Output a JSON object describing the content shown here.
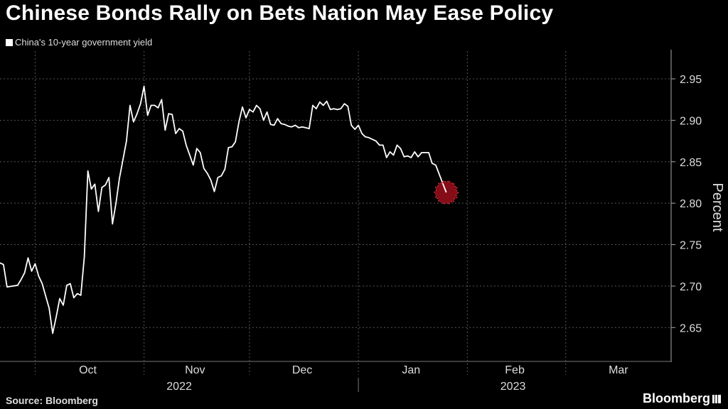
{
  "header": {
    "title": "Chinese Bonds Rally on Bets Nation May Ease Policy",
    "legend_label": "China's 10-year government yield"
  },
  "footer": {
    "source": "Source: Bloomberg",
    "brand": "Bloomberg"
  },
  "chart_data": {
    "type": "line",
    "title": "Chinese Bonds Rally on Bets Nation May Ease Policy",
    "ylabel": "Percent",
    "xlabel": "",
    "ylim": [
      2.61,
      2.98
    ],
    "yticks": [
      2.65,
      2.7,
      2.75,
      2.8,
      2.85,
      2.9,
      2.95
    ],
    "ytick_labels": [
      "2.65",
      "2.70",
      "2.75",
      "2.80",
      "2.85",
      "2.90",
      "2.95"
    ],
    "xlim": [
      "2022-09-21",
      "2023-03-31"
    ],
    "month_ticks": [
      {
        "label": "Oct",
        "center": "2022-10-16",
        "boundary": "2022-10-01"
      },
      {
        "label": "Nov",
        "center": "2022-11-15.5",
        "boundary": "2022-11-01"
      },
      {
        "label": "Dec",
        "center": "2022-12-16",
        "boundary": "2022-12-01"
      },
      {
        "label": "Jan",
        "center": "2023-01-16",
        "boundary": "2023-01-01"
      },
      {
        "label": "Feb",
        "center": "2023-02-14.5",
        "boundary": "2023-02-01"
      },
      {
        "label": "Mar",
        "center": "2023-03-16",
        "boundary": "2023-03-01"
      }
    ],
    "year_labels": [
      {
        "label": "2022",
        "center": "2022-11-11"
      },
      {
        "label": "2023",
        "center": "2023-02-14"
      }
    ],
    "year_divider": "2023-01-01",
    "grid": true,
    "legend": "top-left",
    "series": [
      {
        "name": "China's 10-year government yield",
        "color": "#ffffff",
        "points": [
          [
            "2022-09-21",
            2.728
          ],
          [
            "2022-09-22",
            2.726
          ],
          [
            "2022-09-23",
            2.699
          ],
          [
            "2022-09-26",
            2.701
          ],
          [
            "2022-09-27",
            2.708
          ],
          [
            "2022-09-28",
            2.716
          ],
          [
            "2022-09-29",
            2.734
          ],
          [
            "2022-09-30",
            2.718
          ],
          [
            "2022-10-01",
            2.727
          ],
          [
            "2022-10-02",
            2.712
          ],
          [
            "2022-10-03",
            2.703
          ],
          [
            "2022-10-05",
            2.673
          ],
          [
            "2022-10-06",
            2.643
          ],
          [
            "2022-10-07",
            2.663
          ],
          [
            "2022-10-08",
            2.685
          ],
          [
            "2022-10-09",
            2.677
          ],
          [
            "2022-10-10",
            2.701
          ],
          [
            "2022-10-11",
            2.703
          ],
          [
            "2022-10-12",
            2.686
          ],
          [
            "2022-10-13",
            2.691
          ],
          [
            "2022-10-14",
            2.689
          ],
          [
            "2022-10-15",
            2.735
          ],
          [
            "2022-10-16",
            2.839
          ],
          [
            "2022-10-17",
            2.817
          ],
          [
            "2022-10-18",
            2.823
          ],
          [
            "2022-10-19",
            2.79
          ],
          [
            "2022-10-20",
            2.819
          ],
          [
            "2022-10-21",
            2.822
          ],
          [
            "2022-10-22",
            2.831
          ],
          [
            "2022-10-23",
            2.775
          ],
          [
            "2022-10-24",
            2.8
          ],
          [
            "2022-10-25",
            2.83
          ],
          [
            "2022-10-27",
            2.875
          ],
          [
            "2022-10-28",
            2.918
          ],
          [
            "2022-10-29",
            2.898
          ],
          [
            "2022-10-30",
            2.908
          ],
          [
            "2022-10-31",
            2.92
          ],
          [
            "2022-11-01",
            2.941
          ],
          [
            "2022-11-02",
            2.906
          ],
          [
            "2022-11-03",
            2.918
          ],
          [
            "2022-11-04",
            2.918
          ],
          [
            "2022-11-05",
            2.915
          ],
          [
            "2022-11-06",
            2.925
          ],
          [
            "2022-11-07",
            2.888
          ],
          [
            "2022-11-08",
            2.908
          ],
          [
            "2022-11-09",
            2.907
          ],
          [
            "2022-11-10",
            2.884
          ],
          [
            "2022-11-11",
            2.89
          ],
          [
            "2022-11-12",
            2.887
          ],
          [
            "2022-11-13",
            2.87
          ],
          [
            "2022-11-14",
            2.858
          ],
          [
            "2022-11-15",
            2.846
          ],
          [
            "2022-11-16",
            2.866
          ],
          [
            "2022-11-17",
            2.861
          ],
          [
            "2022-11-18",
            2.842
          ],
          [
            "2022-11-19",
            2.836
          ],
          [
            "2022-11-20",
            2.828
          ],
          [
            "2022-11-21",
            2.814
          ],
          [
            "2022-11-22",
            2.831
          ],
          [
            "2022-11-23",
            2.833
          ],
          [
            "2022-11-24",
            2.841
          ],
          [
            "2022-11-25",
            2.867
          ],
          [
            "2022-11-26",
            2.868
          ],
          [
            "2022-11-27",
            2.874
          ],
          [
            "2022-11-28",
            2.898
          ],
          [
            "2022-11-29",
            2.916
          ],
          [
            "2022-11-30",
            2.903
          ],
          [
            "2022-12-01",
            2.913
          ],
          [
            "2022-12-02",
            2.91
          ],
          [
            "2022-12-03",
            2.918
          ],
          [
            "2022-12-04",
            2.914
          ],
          [
            "2022-12-05",
            2.9
          ],
          [
            "2022-12-06",
            2.91
          ],
          [
            "2022-12-07",
            2.895
          ],
          [
            "2022-12-08",
            2.894
          ],
          [
            "2022-12-09",
            2.902
          ],
          [
            "2022-12-10",
            2.896
          ],
          [
            "2022-12-11",
            2.895
          ],
          [
            "2022-12-12",
            2.893
          ],
          [
            "2022-12-13",
            2.892
          ],
          [
            "2022-12-14",
            2.894
          ],
          [
            "2022-12-15",
            2.891
          ],
          [
            "2022-12-16",
            2.892
          ],
          [
            "2022-12-17",
            2.891
          ],
          [
            "2022-12-18",
            2.89
          ],
          [
            "2022-12-19",
            2.918
          ],
          [
            "2022-12-20",
            2.914
          ],
          [
            "2022-12-21",
            2.922
          ],
          [
            "2022-12-22",
            2.918
          ],
          [
            "2022-12-23",
            2.923
          ],
          [
            "2022-12-24",
            2.913
          ],
          [
            "2022-12-25",
            2.914
          ],
          [
            "2022-12-26",
            2.913
          ],
          [
            "2022-12-27",
            2.914
          ],
          [
            "2022-12-28",
            2.92
          ],
          [
            "2022-12-29",
            2.917
          ],
          [
            "2022-12-30",
            2.894
          ],
          [
            "2022-12-31",
            2.889
          ],
          [
            "2023-01-01",
            2.894
          ],
          [
            "2023-01-02",
            2.884
          ],
          [
            "2023-01-03",
            2.88
          ],
          [
            "2023-01-04",
            2.879
          ],
          [
            "2023-01-05",
            2.877
          ],
          [
            "2023-01-06",
            2.875
          ],
          [
            "2023-01-07",
            2.87
          ],
          [
            "2023-01-08",
            2.87
          ],
          [
            "2023-01-09",
            2.855
          ],
          [
            "2023-01-10",
            2.862
          ],
          [
            "2023-01-11",
            2.858
          ],
          [
            "2023-01-12",
            2.87
          ],
          [
            "2023-01-13",
            2.866
          ],
          [
            "2023-01-14",
            2.856
          ],
          [
            "2023-01-15",
            2.857
          ],
          [
            "2023-01-16",
            2.855
          ],
          [
            "2023-01-17",
            2.862
          ],
          [
            "2023-01-18",
            2.856
          ],
          [
            "2023-01-19",
            2.861
          ],
          [
            "2023-01-20",
            2.861
          ],
          [
            "2023-01-21",
            2.861
          ],
          [
            "2023-01-22",
            2.848
          ],
          [
            "2023-01-23",
            2.846
          ],
          [
            "2023-01-25",
            2.824
          ],
          [
            "2023-01-26",
            2.813
          ]
        ]
      }
    ],
    "annotations": [
      {
        "type": "marker",
        "shape": "starburst",
        "color": "#b0121f",
        "at": [
          "2023-01-26",
          2.813
        ]
      }
    ]
  }
}
